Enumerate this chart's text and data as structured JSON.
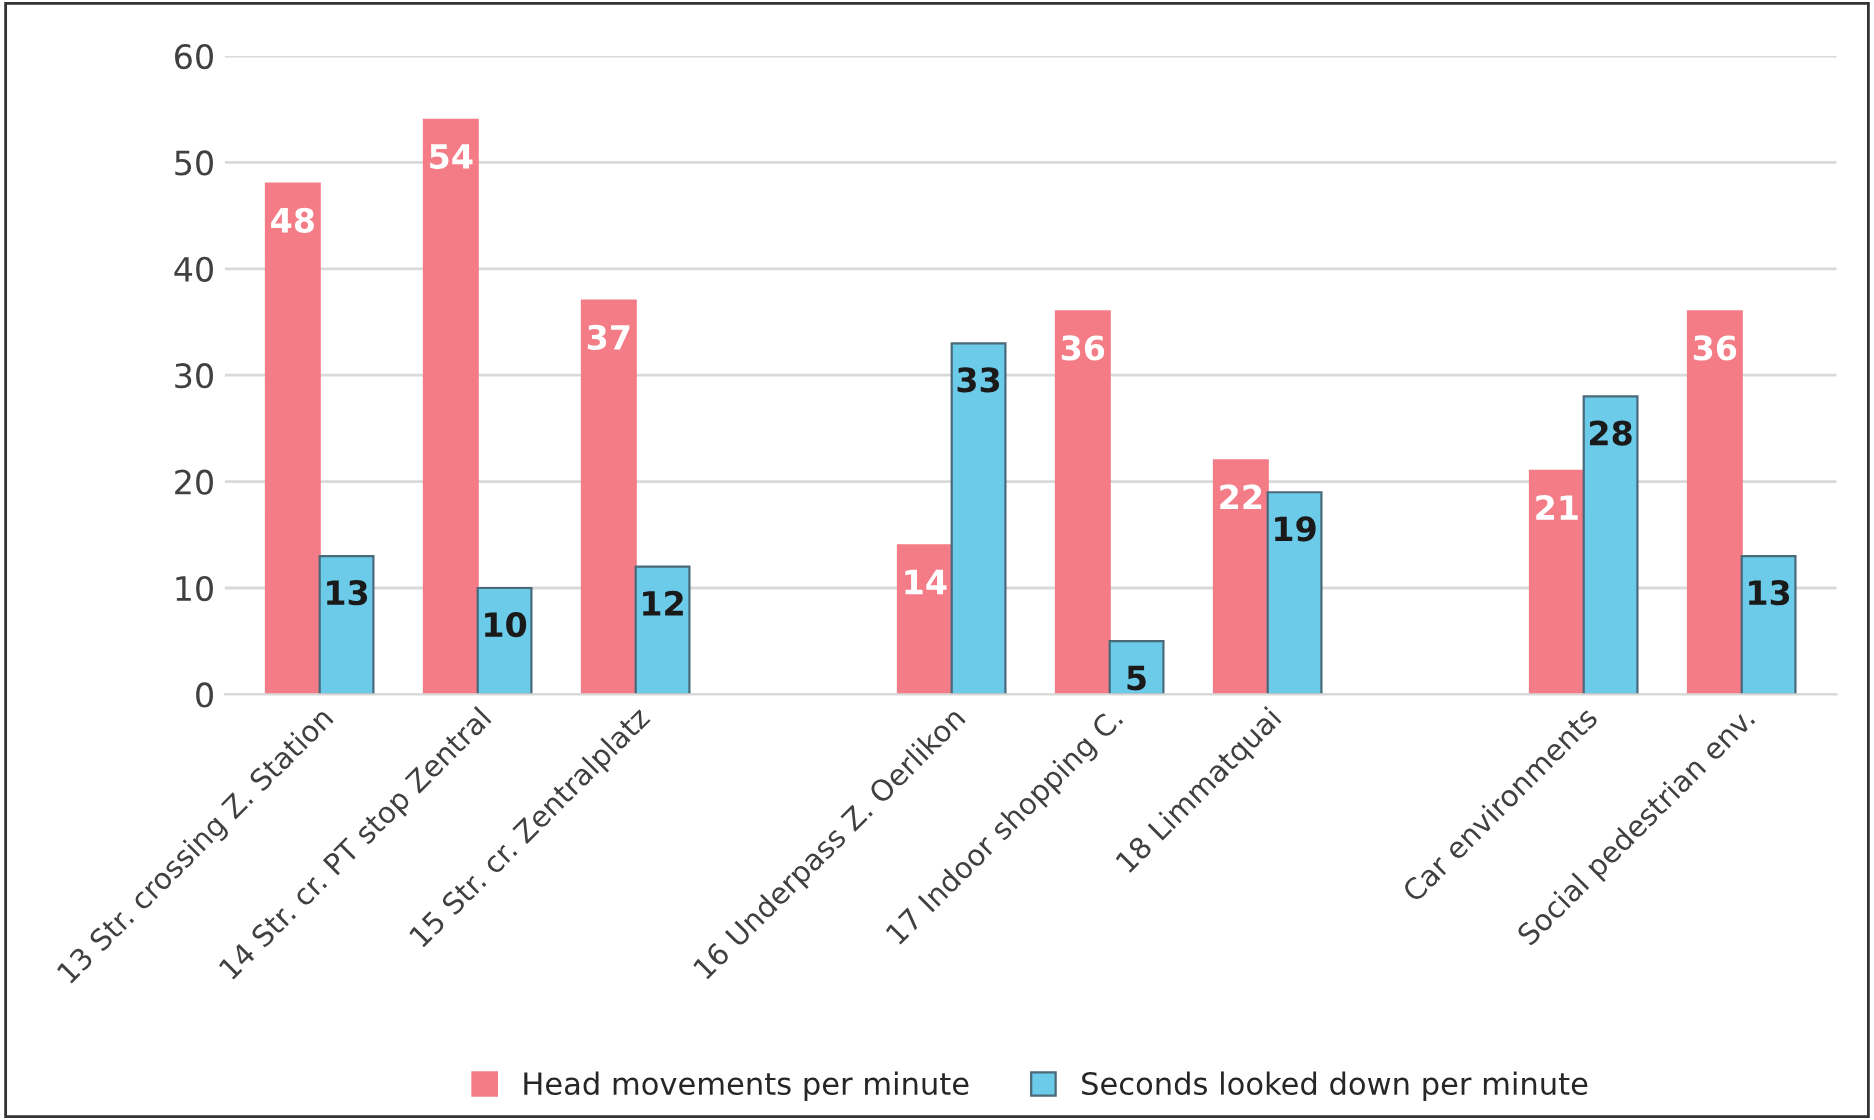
{
  "chart_data": {
    "type": "bar",
    "categories": [
      "13 Str. crossing Z. Station",
      "14 Str. cr. PT stop Zentral",
      "15 Str. cr. Zentralplatz",
      null,
      "16 Underpass Z. Oerlikon",
      "17 Indoor shopping C.",
      "18 Limmatquai",
      null,
      "Car environments",
      "Social pedestrian env."
    ],
    "series": [
      {
        "name": "Head movements per minute",
        "color": "#f47c86",
        "values": [
          48,
          54,
          37,
          null,
          14,
          36,
          22,
          null,
          21,
          36
        ]
      },
      {
        "name": "Seconds looked down per minute",
        "color": "#6ccbe9",
        "values": [
          13,
          10,
          12,
          null,
          33,
          5,
          19,
          null,
          28,
          13
        ]
      }
    ],
    "ylim": [
      0,
      60
    ],
    "yticks": [
      0,
      10,
      20,
      30,
      40,
      50,
      60
    ],
    "grid": "y",
    "legend": "bottom",
    "data_labels": true
  }
}
